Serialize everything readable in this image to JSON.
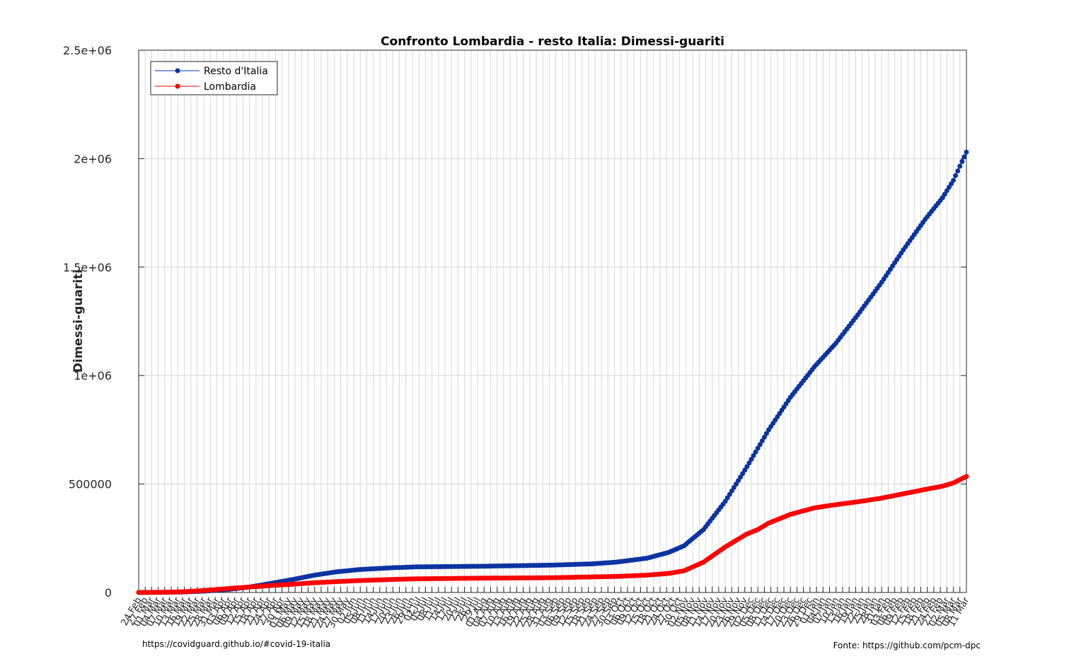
{
  "colors": {
    "resto": "#0a34a1",
    "lombardia": "#ff0000",
    "grid": "#d9d9d9",
    "axis": "#262626"
  },
  "footer": {
    "left": "https://covidguard.github.io/#covid-19-italia",
    "right": "Fonte: https://github.com/pcm-dpc"
  },
  "chart_data": {
    "type": "line",
    "title": "Confronto Lombardia - resto Italia: Dimessi-guariti",
    "xlabel": "",
    "ylabel": "Dimessi-guariti",
    "ylim": [
      0,
      2500000
    ],
    "yticks": [
      0,
      500000,
      1000000,
      1500000,
      2000000,
      2500000
    ],
    "ytick_labels": [
      "0",
      "500000",
      "1e+06",
      "1.5e+06",
      "2e+06",
      "2.5e+06"
    ],
    "x_start": "2020-02-24",
    "x_end": "2021-03-11",
    "grid": true,
    "legend_position": "top-left",
    "xtick_labels": [
      "24 Feb",
      "27 Feb",
      "01 Mar",
      "04 Mar",
      "07 Mar",
      "10 Mar",
      "13 Mar",
      "16 Mar",
      "19 Mar",
      "22 Mar",
      "25 Mar",
      "28 Mar",
      "31 Mar",
      "03 Apr",
      "06 Apr",
      "09 Apr",
      "12 Apr",
      "15 Apr",
      "18 Apr",
      "21 Apr",
      "24 Apr",
      "27 Apr",
      "30 Apr",
      "03 May",
      "06 May",
      "09 May",
      "12 May",
      "15 May",
      "18 May",
      "21 May",
      "24 May",
      "27 May",
      "30 May",
      "02 Jun",
      "05 Jun",
      "08 Jun",
      "11 Jun",
      "14 Jun",
      "17 Jun",
      "20 Jun",
      "23 Jun",
      "26 Jun",
      "29 Jun",
      "02 Jul",
      "05 Jul",
      "08 Jul",
      "11 Jul",
      "14 Jul",
      "17 Jul",
      "20 Jul",
      "23 Jul",
      "26 Jul",
      "29 Jul",
      "01 Aug",
      "04 Aug",
      "07 Aug",
      "10 Aug",
      "13 Aug",
      "16 Aug",
      "19 Aug",
      "22 Aug",
      "25 Aug",
      "28 Aug",
      "31 Aug",
      "03 Sep",
      "06 Sep",
      "09 Sep",
      "12 Sep",
      "15 Sep",
      "18 Sep",
      "21 Sep",
      "24 Sep",
      "27 Sep",
      "30 Sep",
      "03 Oct",
      "06 Oct",
      "09 Oct",
      "12 Oct",
      "15 Oct",
      "18 Oct",
      "21 Oct",
      "24 Oct",
      "27 Oct",
      "30 Oct",
      "02 Nov",
      "05 Nov",
      "08 Nov",
      "11 Nov",
      "14 Nov",
      "17 Nov",
      "20 Nov",
      "23 Nov",
      "26 Nov",
      "29 Nov",
      "02 Dec",
      "05 Dec",
      "08 Dec",
      "11 Dec",
      "14 Dec",
      "17 Dec",
      "20 Dec",
      "23 Dec",
      "26 Dec",
      "29 Dec",
      "01 Jan",
      "04 Jan",
      "07 Jan",
      "10 Jan",
      "13 Jan",
      "16 Jan",
      "19 Jan",
      "22 Jan",
      "25 Jan",
      "28 Jan",
      "31 Jan",
      "03 Feb",
      "06 Feb",
      "09 Feb",
      "12 Feb",
      "15 Feb",
      "18 Feb",
      "21 Feb",
      "24 Feb",
      "27 Feb",
      "02 Mar",
      "05 Mar",
      "08 Mar",
      "11 Mar"
    ],
    "series": [
      {
        "name": "Resto d'Italia",
        "color": "#0a34a1",
        "points": [
          [
            "2020-02-24",
            0
          ],
          [
            "2020-03-05",
            300
          ],
          [
            "2020-03-15",
            2000
          ],
          [
            "2020-03-25",
            6000
          ],
          [
            "2020-04-05",
            14000
          ],
          [
            "2020-04-15",
            25000
          ],
          [
            "2020-04-25",
            42000
          ],
          [
            "2020-05-05",
            60000
          ],
          [
            "2020-05-15",
            80000
          ],
          [
            "2020-05-25",
            95000
          ],
          [
            "2020-06-05",
            106000
          ],
          [
            "2020-06-20",
            114000
          ],
          [
            "2020-07-01",
            118000
          ],
          [
            "2020-08-01",
            121000
          ],
          [
            "2020-09-01",
            126000
          ],
          [
            "2020-09-20",
            132000
          ],
          [
            "2020-10-01",
            140000
          ],
          [
            "2020-10-15",
            158000
          ],
          [
            "2020-10-25",
            185000
          ],
          [
            "2020-11-01",
            215000
          ],
          [
            "2020-11-10",
            290000
          ],
          [
            "2020-11-20",
            420000
          ],
          [
            "2020-11-30",
            580000
          ],
          [
            "2020-12-10",
            750000
          ],
          [
            "2020-12-20",
            900000
          ],
          [
            "2020-12-31",
            1040000
          ],
          [
            "2021-01-10",
            1150000
          ],
          [
            "2021-01-20",
            1280000
          ],
          [
            "2021-01-31",
            1430000
          ],
          [
            "2021-02-10",
            1580000
          ],
          [
            "2021-02-20",
            1720000
          ],
          [
            "2021-02-28",
            1820000
          ],
          [
            "2021-03-05",
            1900000
          ],
          [
            "2021-03-11",
            2030000
          ]
        ]
      },
      {
        "name": "Lombardia",
        "color": "#ff0000",
        "points": [
          [
            "2020-02-24",
            0
          ],
          [
            "2020-03-05",
            800
          ],
          [
            "2020-03-15",
            3000
          ],
          [
            "2020-03-25",
            9000
          ],
          [
            "2020-04-05",
            18000
          ],
          [
            "2020-04-15",
            25000
          ],
          [
            "2020-04-25",
            32000
          ],
          [
            "2020-05-05",
            38000
          ],
          [
            "2020-05-15",
            45000
          ],
          [
            "2020-05-25",
            50000
          ],
          [
            "2020-06-05",
            55000
          ],
          [
            "2020-06-20",
            60000
          ],
          [
            "2020-07-01",
            63000
          ],
          [
            "2020-08-01",
            66000
          ],
          [
            "2020-09-01",
            68000
          ],
          [
            "2020-10-01",
            74000
          ],
          [
            "2020-10-15",
            80000
          ],
          [
            "2020-10-25",
            88000
          ],
          [
            "2020-11-01",
            100000
          ],
          [
            "2020-11-10",
            140000
          ],
          [
            "2020-11-20",
            210000
          ],
          [
            "2020-11-30",
            270000
          ],
          [
            "2020-12-05",
            290000
          ],
          [
            "2020-12-10",
            320000
          ],
          [
            "2020-12-20",
            360000
          ],
          [
            "2020-12-31",
            390000
          ],
          [
            "2021-01-10",
            405000
          ],
          [
            "2021-01-20",
            418000
          ],
          [
            "2021-01-31",
            435000
          ],
          [
            "2021-02-10",
            455000
          ],
          [
            "2021-02-20",
            475000
          ],
          [
            "2021-02-28",
            490000
          ],
          [
            "2021-03-05",
            505000
          ],
          [
            "2021-03-11",
            535000
          ]
        ]
      }
    ]
  }
}
